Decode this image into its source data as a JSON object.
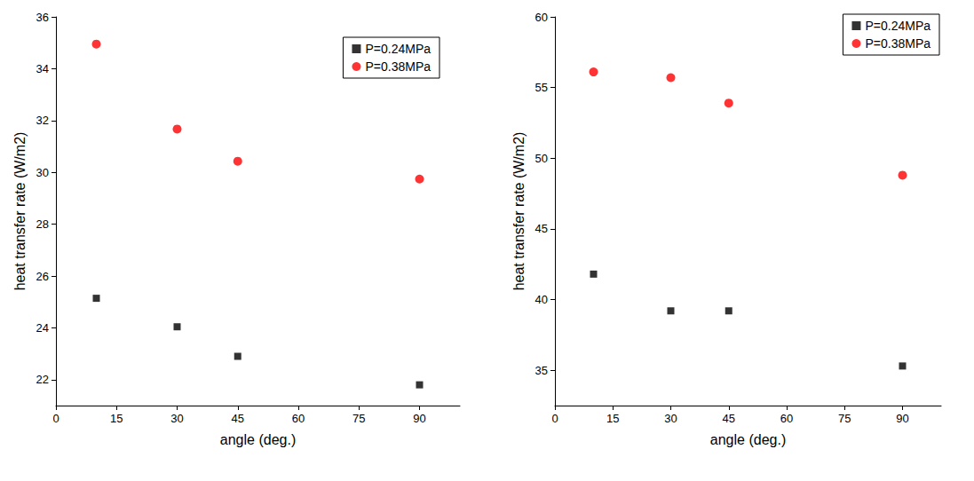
{
  "chart_data": [
    {
      "type": "scatter",
      "x_label": "angle (deg.)",
      "y_label": "heat transfer rate (W/m2)",
      "xlim": [
        0,
        100
      ],
      "xticks": [
        0,
        15,
        30,
        45,
        60,
        75,
        90
      ],
      "ylim": [
        21,
        36
      ],
      "yticks": [
        22,
        24,
        26,
        28,
        30,
        32,
        34,
        36
      ],
      "grid": false,
      "legend": "upper right",
      "series": [
        {
          "name": "P=0.24MPa",
          "color": "#000000",
          "marker": "square",
          "x": [
            10,
            30,
            45,
            90
          ],
          "values": [
            25.14,
            24.04,
            22.9,
            21.8
          ]
        },
        {
          "name": "P=0.38MPa",
          "color": "#ff0000",
          "marker": "circle",
          "x": [
            10,
            30,
            45,
            90
          ],
          "values": [
            34.95,
            31.67,
            30.43,
            29.74
          ]
        }
      ]
    },
    {
      "type": "scatter",
      "x_label": "angle (deg.)",
      "y_label": "heat transfer rate (W/m2)",
      "xlim": [
        0,
        100
      ],
      "xticks": [
        0,
        15,
        30,
        45,
        60,
        75,
        90
      ],
      "ylim": [
        32.5,
        60
      ],
      "yticks": [
        35,
        40,
        45,
        50,
        55,
        60
      ],
      "grid": false,
      "legend": "upper right",
      "series": [
        {
          "name": "P=0.24MPa",
          "color": "#000000",
          "marker": "square",
          "x": [
            10,
            30,
            45,
            90
          ],
          "values": [
            41.8,
            39.2,
            39.2,
            35.3
          ]
        },
        {
          "name": "P=0.38MPa",
          "color": "#ff0000",
          "marker": "circle",
          "x": [
            10,
            30,
            45,
            90
          ],
          "values": [
            56.1,
            55.7,
            53.9,
            48.8
          ]
        }
      ]
    }
  ]
}
